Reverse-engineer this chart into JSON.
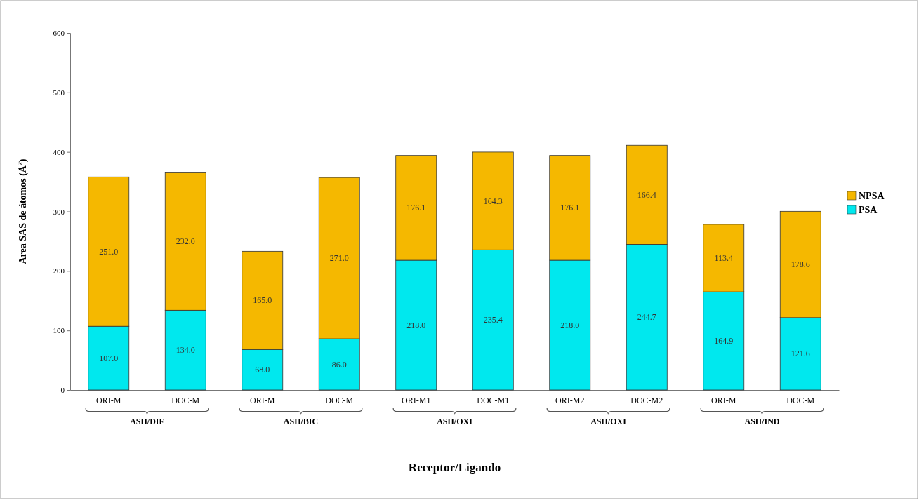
{
  "chart_data": {
    "type": "bar",
    "stacked": true,
    "xlabel": "Receptor/Ligando",
    "ylabel": "Area SAS de átomos (Å$^{2}$)",
    "categories": [
      "ORI-M",
      "DOC-M",
      "ORI-M",
      "DOC-M",
      "ORI-M1",
      "DOC-M1",
      "ORI-M2",
      "DOC-M2",
      "ORI-M",
      "DOC-M"
    ],
    "series": [
      {
        "name": "PSA",
        "color": "#00e8ee",
        "values": [
          107.0,
          134.0,
          68.0,
          86.0,
          218.0,
          235.4,
          218.0,
          244.7,
          164.9,
          121.6
        ],
        "value_labels": [
          "107.0",
          "134.0",
          "68.0",
          "86.0",
          "218.0",
          "235.4",
          "218.0",
          "244.7",
          "164.9",
          "121.6"
        ]
      },
      {
        "name": "NPSA",
        "color": "#f5b800",
        "values": [
          251.0,
          232.0,
          165.0,
          271.0,
          176.1,
          164.3,
          176.1,
          166.4,
          113.4,
          178.6
        ],
        "value_labels": [
          "251.0",
          "232.0",
          "165.0",
          "271.0",
          "176.1",
          "164.3",
          "176.1",
          "166.4",
          "113.4",
          "178.6"
        ]
      }
    ],
    "annotations": [
      "ASH/DIF",
      "ASH/BIC",
      "ASH/OXI",
      "ASH/OXI",
      "ASH/IND"
    ],
    "ylim": [
      0,
      600
    ],
    "yticks": [
      0,
      100,
      200,
      300,
      400,
      500,
      600
    ],
    "grid": false,
    "legend": "right"
  }
}
